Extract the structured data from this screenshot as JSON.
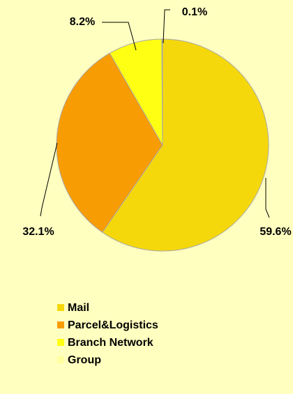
{
  "chart_data": {
    "type": "pie",
    "categories": [
      "Mail",
      "Parcel&Logistics",
      "Branch Network",
      "Group"
    ],
    "values": [
      59.6,
      32.1,
      8.2,
      0.1
    ],
    "value_labels": [
      "59.6%",
      "32.1%",
      "8.2%",
      "0.1%"
    ],
    "colors": [
      "#f5d80c",
      "#f89c04",
      "#ffff14",
      "#ffffa0"
    ],
    "legend": "bottom"
  }
}
